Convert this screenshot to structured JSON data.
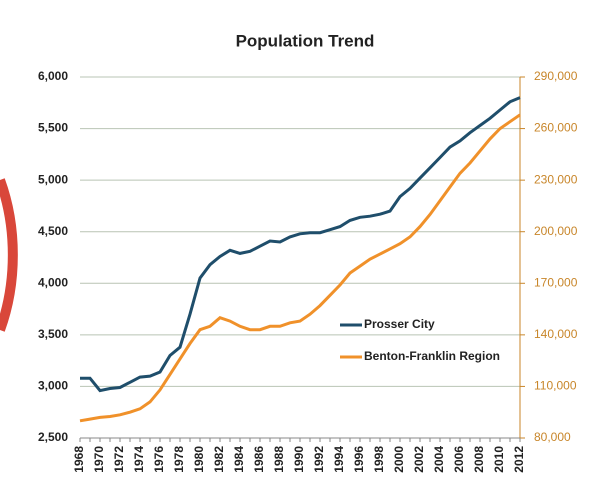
{
  "chart_data": {
    "type": "line",
    "title": "Population Trend",
    "categories": [
      "1968",
      null,
      "1970",
      null,
      "1972",
      null,
      "1974",
      null,
      "1976",
      null,
      "1978",
      null,
      "1980",
      null,
      "1982",
      null,
      "1984",
      null,
      "1986",
      null,
      "1988",
      null,
      "1990",
      null,
      "1992",
      null,
      "1994",
      null,
      "1996",
      null,
      "1998",
      null,
      "2000",
      null,
      "2002",
      null,
      "2004",
      null,
      "2006",
      null,
      "2008",
      null,
      "2010",
      null,
      "2012"
    ],
    "series": [
      {
        "name": "Prosser City",
        "color": "#1f4e6b",
        "values": [
          3080,
          3080,
          2960,
          2980,
          2990,
          3040,
          3090,
          3100,
          3140,
          3300,
          3380,
          3700,
          4050,
          4180,
          4260,
          4320,
          4290,
          4310,
          4360,
          4410,
          4400,
          4450,
          4480,
          4490,
          4490,
          4520,
          4550,
          4610,
          4640,
          4650,
          4670,
          4700,
          4840,
          4920,
          5020,
          5120,
          5220,
          5320,
          5380,
          5460,
          5530,
          5600,
          5680,
          5760,
          5800
        ]
      },
      {
        "name": "Benton-Franklin Region",
        "color": "#f0912a",
        "axis": "y2",
        "values": [
          90000,
          91000,
          92000,
          92500,
          93500,
          95000,
          97000,
          101000,
          108000,
          117000,
          126000,
          135000,
          143000,
          145000,
          150000,
          148000,
          145000,
          143000,
          143000,
          145000,
          145000,
          147000,
          148000,
          152000,
          157000,
          163000,
          169000,
          176000,
          180000,
          184000,
          187000,
          190000,
          193000,
          197000,
          203000,
          210000,
          218000,
          226000,
          234000,
          240000,
          247000,
          254000,
          260000,
          264000,
          268000
        ]
      }
    ],
    "ylim": [
      2500,
      6000
    ],
    "yticks": [
      {
        "value": 2500,
        "label": "2,500"
      },
      {
        "value": 3000,
        "label": "3,000"
      },
      {
        "value": 3500,
        "label": "3,500"
      },
      {
        "value": 4000,
        "label": "4,000"
      },
      {
        "value": 4500,
        "label": "4,500"
      },
      {
        "value": 5000,
        "label": "5,000"
      },
      {
        "value": 5500,
        "label": "5,500"
      },
      {
        "value": 6000,
        "label": "6,000"
      }
    ],
    "y2lim": [
      80000,
      290000
    ],
    "y2ticks": [
      {
        "value": 80000,
        "label": "80,000"
      },
      {
        "value": 110000,
        "label": "110,000"
      },
      {
        "value": 140000,
        "label": "140,000"
      },
      {
        "value": 170000,
        "label": "170,000"
      },
      {
        "value": 200000,
        "label": "200,000"
      },
      {
        "value": 230000,
        "label": "230,000"
      },
      {
        "value": 260000,
        "label": "260,000"
      },
      {
        "value": 290000,
        "label": "290,000"
      }
    ],
    "grid": true,
    "legend": "center-right"
  }
}
